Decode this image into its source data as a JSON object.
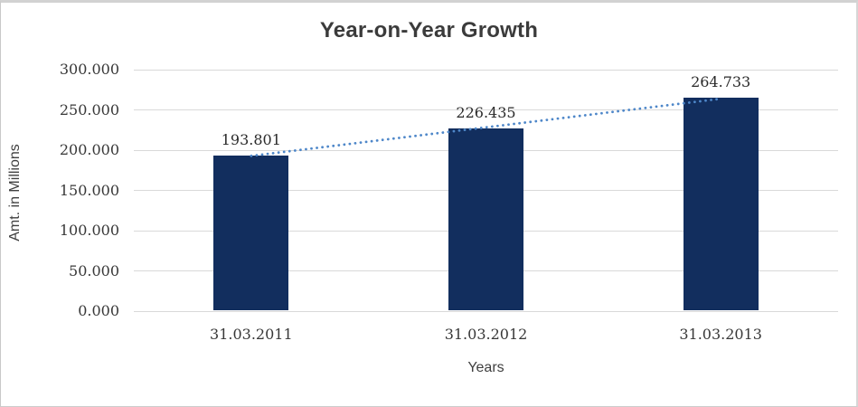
{
  "chart_data": {
    "type": "bar",
    "title": "Year-on-Year Growth",
    "xlabel": "Years",
    "ylabel": "Amt. in Millions",
    "categories": [
      "31.03.2011",
      "31.03.2012",
      "31.03.2013"
    ],
    "values": [
      193.801,
      226.435,
      264.733
    ],
    "data_labels": [
      "193.801",
      "226.435",
      "264.733"
    ],
    "ylim": [
      0,
      300
    ],
    "ytick_step": 50,
    "ytick_labels": [
      "0.000",
      "50.000",
      "100.000",
      "150.000",
      "200.000",
      "250.000",
      "300.000"
    ],
    "grid": true,
    "legend": "none",
    "trendline": {
      "type": "linear",
      "style": "dotted"
    }
  },
  "colors": {
    "bar": "#122e5e",
    "trendline": "#4e87c9",
    "gridline": "#d9d9d9",
    "title_text": "#3b3b3b",
    "axis_text": "#383838",
    "frame": "#c9c9c9"
  }
}
